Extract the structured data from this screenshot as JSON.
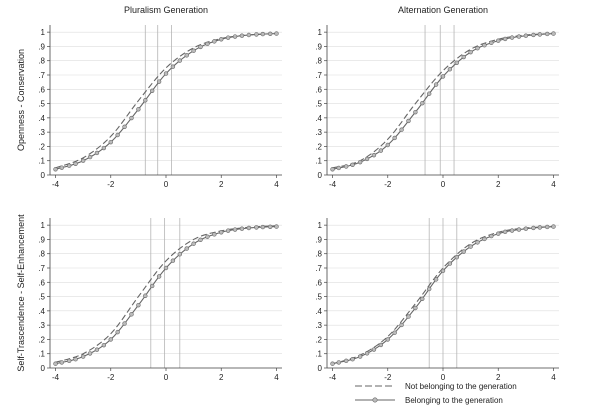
{
  "chart_data": [
    {
      "type": "line",
      "title": "Pluralism Generation",
      "ylabel": "Openness - Conservation",
      "xlim": [
        -4.2,
        4.2
      ],
      "ylim": [
        0,
        1.05
      ],
      "x_ticks": [
        "-4",
        "-2",
        "0",
        "2",
        "4"
      ],
      "y_ticks": [
        "0",
        ".1",
        ".2",
        ".3",
        ".4",
        ".5",
        ".6",
        ".7",
        ".8",
        ".9",
        "1"
      ],
      "vlines": [
        -0.75,
        -0.3,
        0.2
      ],
      "series": [
        {
          "name": "Not belonging to the generation",
          "style": "dashed",
          "x": [
            -4,
            -3,
            -2,
            -1,
            0,
            1,
            2,
            3,
            4
          ],
          "y": [
            0.05,
            0.12,
            0.27,
            0.52,
            0.75,
            0.89,
            0.955,
            0.98,
            0.99
          ]
        },
        {
          "name": "Belonging to the generation",
          "style": "solid-circle",
          "x": [
            -4,
            -3,
            -2,
            -1,
            0,
            1,
            2,
            3,
            4
          ],
          "y": [
            0.04,
            0.1,
            0.23,
            0.46,
            0.71,
            0.87,
            0.95,
            0.98,
            0.99
          ]
        }
      ]
    },
    {
      "type": "line",
      "title": "Alternation Generation",
      "ylabel": "",
      "xlim": [
        -4.2,
        4.2
      ],
      "ylim": [
        0,
        1.05
      ],
      "x_ticks": [
        "-4",
        "-2",
        "0",
        "2",
        "4"
      ],
      "y_ticks": [
        "0",
        ".1",
        ".2",
        ".3",
        ".4",
        ".5",
        ".6",
        ".7",
        ".8",
        ".9",
        "1"
      ],
      "vlines": [
        -0.65,
        -0.1,
        0.4
      ],
      "series": [
        {
          "name": "Not belonging to the generation",
          "style": "dashed",
          "x": [
            -4,
            -3,
            -2,
            -1,
            0,
            1,
            2,
            3,
            4
          ],
          "y": [
            0.05,
            0.1,
            0.25,
            0.5,
            0.73,
            0.88,
            0.95,
            0.98,
            0.99
          ]
        },
        {
          "name": "Belonging to the generation",
          "style": "solid-circle",
          "x": [
            -4,
            -3,
            -2,
            -1,
            0,
            1,
            2,
            3,
            4
          ],
          "y": [
            0.04,
            0.09,
            0.21,
            0.44,
            0.69,
            0.86,
            0.94,
            0.975,
            0.99
          ]
        }
      ]
    },
    {
      "type": "line",
      "title": "",
      "ylabel": "Self-Trascendence - Self-Enhancement",
      "xlim": [
        -4.2,
        4.2
      ],
      "ylim": [
        0,
        1.05
      ],
      "x_ticks": [
        "-4",
        "-2",
        "0",
        "2",
        "4"
      ],
      "y_ticks": [
        "0",
        ".1",
        ".2",
        ".3",
        ".4",
        ".5",
        ".6",
        ".7",
        ".8",
        ".9",
        "1"
      ],
      "vlines": [
        -0.55,
        -0.05,
        0.5
      ],
      "series": [
        {
          "name": "Not belonging to the generation",
          "style": "dashed",
          "x": [
            -4,
            -3,
            -2,
            -1,
            0,
            1,
            2,
            3,
            4
          ],
          "y": [
            0.04,
            0.1,
            0.24,
            0.5,
            0.75,
            0.9,
            0.96,
            0.985,
            0.995
          ]
        },
        {
          "name": "Belonging to the generation",
          "style": "solid-circle",
          "x": [
            -4,
            -3,
            -2,
            -1,
            0,
            1,
            2,
            3,
            4
          ],
          "y": [
            0.03,
            0.08,
            0.2,
            0.44,
            0.7,
            0.87,
            0.95,
            0.98,
            0.99
          ]
        }
      ]
    },
    {
      "type": "line",
      "title": "",
      "ylabel": "",
      "xlim": [
        -4.2,
        4.2
      ],
      "ylim": [
        0,
        1.05
      ],
      "x_ticks": [
        "-4",
        "-2",
        "0",
        "2",
        "4"
      ],
      "y_ticks": [
        "0",
        ".1",
        ".2",
        ".3",
        ".4",
        ".5",
        ".6",
        ".7",
        ".8",
        ".9",
        "1"
      ],
      "vlines": [
        -0.5,
        0.0,
        0.5
      ],
      "series": [
        {
          "name": "Not belonging to the generation",
          "style": "dashed",
          "x": [
            -4,
            -3,
            -2,
            -1,
            0,
            1,
            2,
            3,
            4
          ],
          "y": [
            0.03,
            0.09,
            0.22,
            0.45,
            0.7,
            0.87,
            0.95,
            0.98,
            0.99
          ]
        },
        {
          "name": "Belonging to the generation",
          "style": "solid-circle",
          "x": [
            -4,
            -3,
            -2,
            -1,
            0,
            1,
            2,
            3,
            4
          ],
          "y": [
            0.03,
            0.08,
            0.2,
            0.42,
            0.68,
            0.85,
            0.94,
            0.975,
            0.99
          ]
        }
      ]
    }
  ],
  "legend": {
    "items": [
      {
        "label": "Not belonging to the generation",
        "style": "dashed"
      },
      {
        "label": "Belonging to the generation",
        "style": "solid-circle"
      }
    ]
  },
  "colors": {
    "line": "#666666",
    "grid": "#dddddd",
    "vline": "#b5b5b5",
    "axis": "#444444",
    "marker_fill": "#bbbbbb"
  }
}
